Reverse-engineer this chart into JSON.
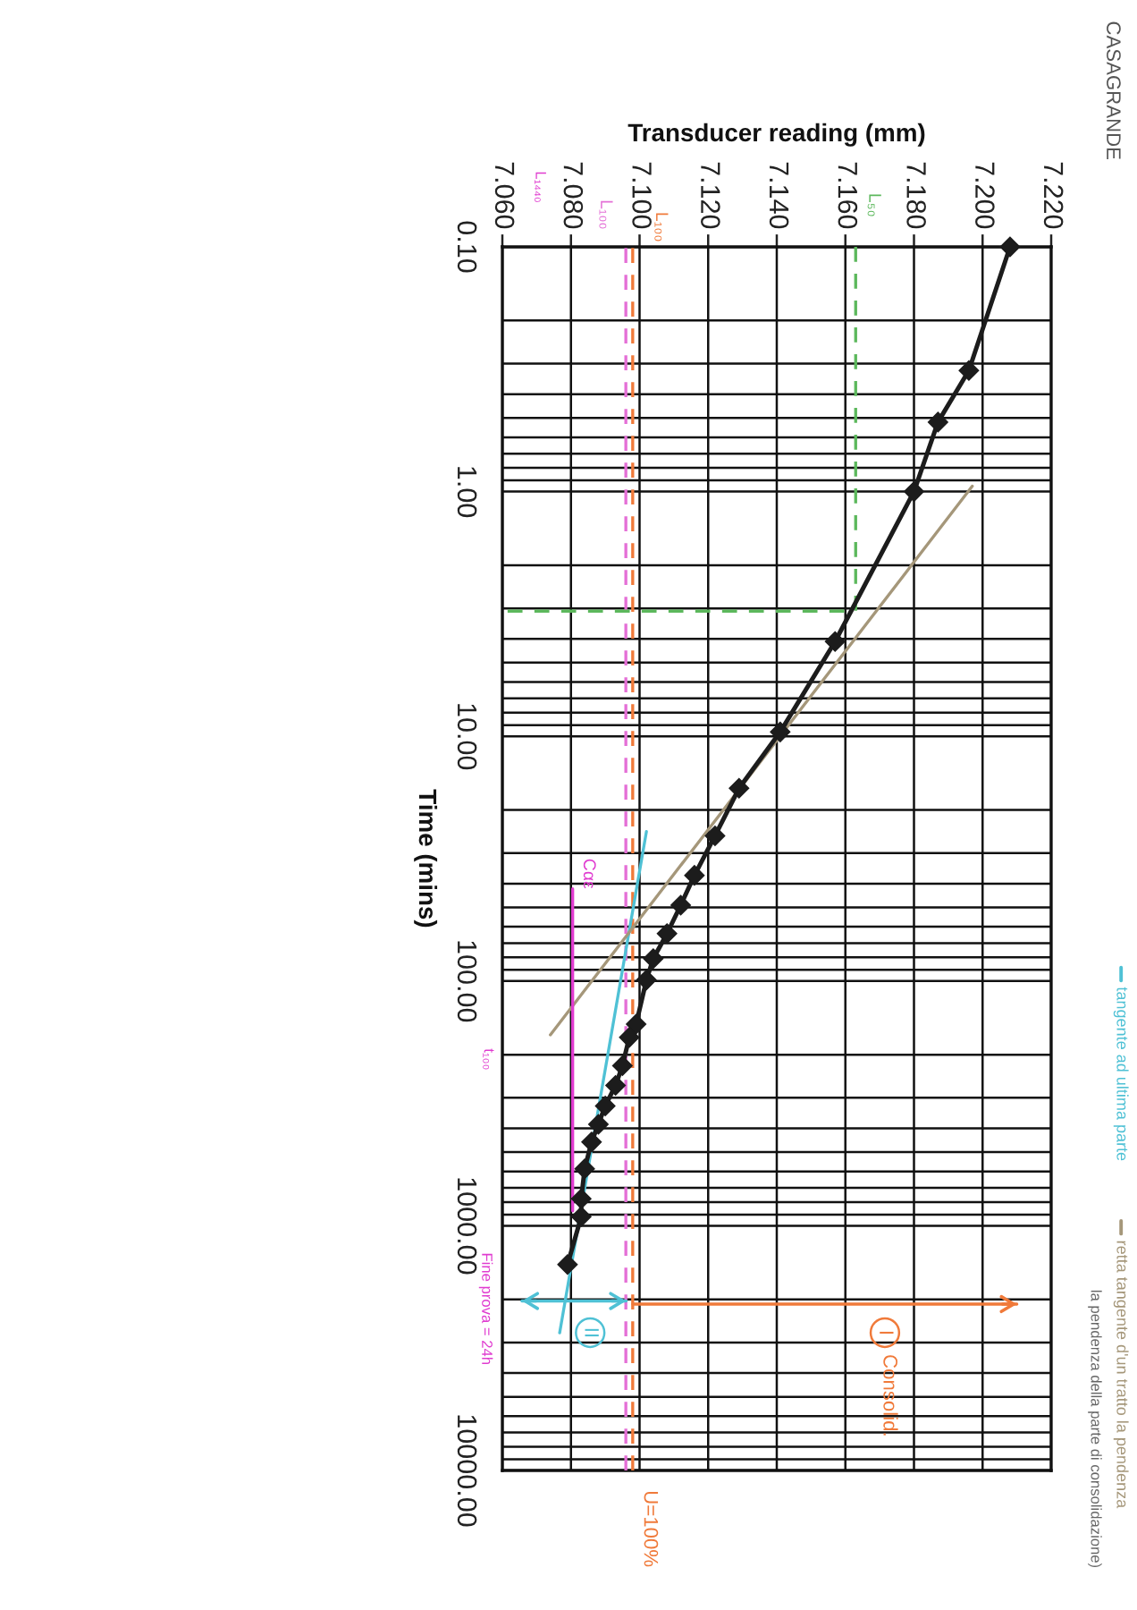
{
  "chart_data": {
    "type": "line",
    "xlabel": "Transducer reading (mm)",
    "ylabel": "Time (mins)",
    "xlim": [
      7.06,
      7.22
    ],
    "xticks": [
      {
        "value": 7.06,
        "label": "7.060"
      },
      {
        "value": 7.08,
        "label": "7.080"
      },
      {
        "value": 7.1,
        "label": "7.100"
      },
      {
        "value": 7.12,
        "label": "7.120"
      },
      {
        "value": 7.14,
        "label": "7.140"
      },
      {
        "value": 7.16,
        "label": "7.160"
      },
      {
        "value": 7.18,
        "label": "7.180"
      },
      {
        "value": 7.2,
        "label": "7.200"
      },
      {
        "value": 7.22,
        "label": "7.220"
      }
    ],
    "ylim": [
      10000,
      0.1
    ],
    "yticks": [
      {
        "value": 0.1,
        "label": "0.10"
      },
      {
        "value": 1,
        "label": "1.00"
      },
      {
        "value": 10,
        "label": "10.00"
      },
      {
        "value": 100,
        "label": "100.00"
      },
      {
        "value": 1000,
        "label": "1000.00"
      },
      {
        "value": 10000,
        "label": "10000.00"
      }
    ],
    "log": "y",
    "grid": true,
    "legend": "right",
    "series": [
      {
        "color": "#4fc1d5",
        "name": "tangente ad ultima parte",
        "x": [
          7.102,
          7.0767
        ],
        "values": [
          24.5,
          2740
        ]
      },
      {
        "color": "#a5977a",
        "name": "retta tangente d'un tratto la pendenza",
        "x": [
          7.197,
          7.074
        ],
        "values": [
          0.95,
          166
        ]
      },
      {
        "color": "#5cb85c",
        "line_style": "dashed",
        "x": [
          7.163,
          7.163,
          7.06
        ],
        "values": [
          0.1,
          3.08,
          3.08
        ]
      },
      {
        "color": "#e03cd0",
        "x": [
          7.0805,
          7.0805
        ],
        "values": [
          42,
          870
        ]
      },
      {
        "color": "#f07a3a",
        "x": [
          7.098,
          7.21
        ],
        "values": [
          2090,
          2090
        ]
      },
      {
        "color": "#4fc1d5",
        "x": [
          7.0657,
          7.0961
        ],
        "values": [
          2030,
          2030
        ]
      },
      {
        "color": "#1c1c1c",
        "marker": "diamond",
        "x": [
          7.208,
          7.196,
          7.187,
          7.18,
          7.157,
          7.141,
          7.129,
          7.122,
          7.116,
          7.112,
          7.108,
          7.104,
          7.102,
          7.099,
          7.097,
          7.095,
          7.093,
          7.09,
          7.088,
          7.086,
          7.084,
          7.083,
          7.083,
          7.079
        ],
        "values": [
          0.1,
          0.32,
          0.52,
          1.0,
          4.1,
          9.6,
          16.3,
          25.5,
          37,
          49,
          64,
          81,
          99,
          150,
          170,
          222,
          267,
          324,
          385,
          455,
          585,
          776,
          918,
          1440
        ]
      }
    ],
    "ref_lines": [
      {
        "axis": "x",
        "value": 7.098,
        "label": "L₁₀₀",
        "color": "#f07a3a",
        "line_style": "dashed"
      },
      {
        "axis": "x",
        "value": 7.096,
        "label": "L₁₀₀",
        "color": "#e46fd6",
        "line_style": "dashed"
      }
    ],
    "annotations": [
      "CASAGRANDE",
      {
        "text": "L₅₀",
        "x": 7.163,
        "y": 0.1
      },
      {
        "text": "Cαε",
        "x": 7.0805,
        "y": 42
      },
      "t₁₀₀",
      "Fine prova = 24h",
      "I",
      "Consolid.",
      "II",
      {
        "text": "U=100%",
        "x": 7.098,
        "y": 10000
      },
      "la pendenza della parte di consolidazione)",
      "L₁₄₄₀"
    ]
  }
}
